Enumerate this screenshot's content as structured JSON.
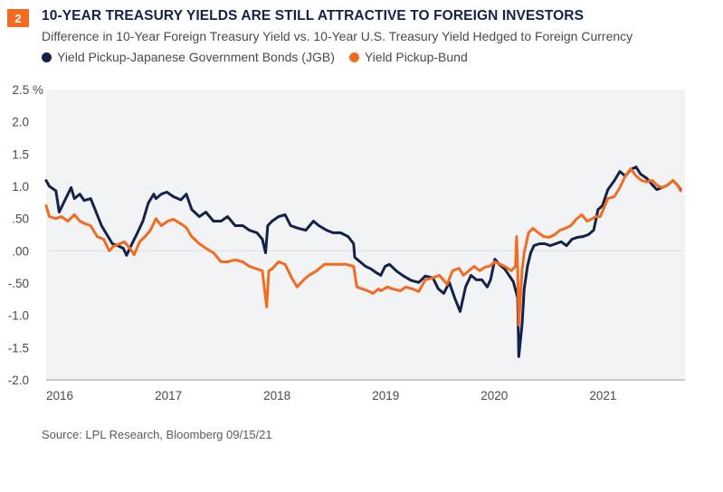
{
  "header": {
    "badge": "2",
    "title": "10-YEAR TREASURY YIELDS ARE STILL ATTRACTIVE TO FOREIGN INVESTORS",
    "subtitle": "Difference in 10-Year Foreign Treasury Yield vs. 10-Year U.S. Treasury Yield Hedged to Foreign Currency"
  },
  "colors": {
    "badge": "#f26b21",
    "title": "#14214a",
    "jgb": "#14214a",
    "bund": "#f26b21",
    "plot_bg": "#f2f3f5",
    "zero_line": "#e3e4e7",
    "axis": "#b8b8b8"
  },
  "source": "Source: LPL Research, Bloomberg   09/15/21",
  "chart_data": {
    "type": "line",
    "title": "10-YEAR TREASURY YIELDS ARE STILL ATTRACTIVE TO FOREIGN INVESTORS",
    "subtitle": "Difference in 10-Year Foreign Treasury Yield vs. 10-Year U.S. Treasury Yield Hedged to Foreign Currency",
    "xlabel": "",
    "ylabel": "%",
    "xlim": [
      2016.0,
      2021.88
    ],
    "ylim": [
      -2.0,
      2.5
    ],
    "y_ticks": [
      2.5,
      2.0,
      1.5,
      1.0,
      0.5,
      0.0,
      -0.5,
      -1.0,
      -1.5,
      -2.0
    ],
    "y_tick_labels": [
      "2.5 %",
      "2.0",
      "1.5",
      "1.0",
      ".50",
      ".00",
      "-.50",
      "-1.0",
      "-1.5",
      "-2.0"
    ],
    "x_ticks": [
      2016,
      2017,
      2018,
      2019,
      2020,
      2021
    ],
    "x_tick_labels": [
      "2016",
      "2017",
      "2018",
      "2019",
      "2020",
      "2021"
    ],
    "grid": "zero-line only",
    "legend_position": "top-left",
    "series": [
      {
        "name": "Yield Pickup-Japanese Government Bonds (JGB)",
        "color": "#14214a",
        "points": [
          [
            2016.0,
            1.09
          ],
          [
            2016.03,
            1.0
          ],
          [
            2016.09,
            0.93
          ],
          [
            2016.12,
            0.6
          ],
          [
            2016.16,
            0.74
          ],
          [
            2016.23,
            0.98
          ],
          [
            2016.26,
            0.81
          ],
          [
            2016.31,
            0.88
          ],
          [
            2016.35,
            0.78
          ],
          [
            2016.41,
            0.81
          ],
          [
            2016.46,
            0.6
          ],
          [
            2016.51,
            0.39
          ],
          [
            2016.56,
            0.25
          ],
          [
            2016.61,
            0.11
          ],
          [
            2016.66,
            0.08
          ],
          [
            2016.71,
            0.04
          ],
          [
            2016.74,
            -0.07
          ],
          [
            2016.79,
            0.11
          ],
          [
            2016.84,
            0.28
          ],
          [
            2016.89,
            0.46
          ],
          [
            2016.94,
            0.74
          ],
          [
            2016.99,
            0.88
          ],
          [
            2017.01,
            0.81
          ],
          [
            2017.06,
            0.88
          ],
          [
            2017.11,
            0.91
          ],
          [
            2017.17,
            0.84
          ],
          [
            2017.24,
            0.79
          ],
          [
            2017.29,
            0.88
          ],
          [
            2017.34,
            0.64
          ],
          [
            2017.41,
            0.53
          ],
          [
            2017.47,
            0.6
          ],
          [
            2017.54,
            0.46
          ],
          [
            2017.61,
            0.46
          ],
          [
            2017.67,
            0.53
          ],
          [
            2017.74,
            0.39
          ],
          [
            2017.81,
            0.39
          ],
          [
            2017.87,
            0.32
          ],
          [
            2017.94,
            0.28
          ],
          [
            2017.99,
            0.18
          ],
          [
            2018.02,
            -0.03
          ],
          [
            2018.04,
            0.39
          ],
          [
            2018.08,
            0.46
          ],
          [
            2018.14,
            0.53
          ],
          [
            2018.2,
            0.56
          ],
          [
            2018.25,
            0.39
          ],
          [
            2018.32,
            0.35
          ],
          [
            2018.39,
            0.32
          ],
          [
            2018.46,
            0.46
          ],
          [
            2018.51,
            0.39
          ],
          [
            2018.58,
            0.32
          ],
          [
            2018.64,
            0.28
          ],
          [
            2018.71,
            0.28
          ],
          [
            2018.78,
            0.22
          ],
          [
            2018.83,
            0.11
          ],
          [
            2018.84,
            -0.1
          ],
          [
            2018.89,
            -0.17
          ],
          [
            2018.94,
            -0.24
          ],
          [
            2018.99,
            -0.28
          ],
          [
            2019.04,
            -0.34
          ],
          [
            2019.08,
            -0.38
          ],
          [
            2019.12,
            -0.24
          ],
          [
            2019.16,
            -0.21
          ],
          [
            2019.23,
            -0.32
          ],
          [
            2019.29,
            -0.39
          ],
          [
            2019.36,
            -0.46
          ],
          [
            2019.43,
            -0.49
          ],
          [
            2019.49,
            -0.39
          ],
          [
            2019.56,
            -0.42
          ],
          [
            2019.61,
            -0.59
          ],
          [
            2019.66,
            -0.66
          ],
          [
            2019.71,
            -0.49
          ],
          [
            2019.76,
            -0.73
          ],
          [
            2019.81,
            -0.94
          ],
          [
            2019.86,
            -0.56
          ],
          [
            2019.91,
            -0.38
          ],
          [
            2019.96,
            -0.45
          ],
          [
            2020.01,
            -0.45
          ],
          [
            2020.06,
            -0.56
          ],
          [
            2020.09,
            -0.45
          ],
          [
            2020.13,
            -0.13
          ],
          [
            2020.17,
            -0.21
          ],
          [
            2020.22,
            -0.28
          ],
          [
            2020.26,
            -0.38
          ],
          [
            2020.3,
            -0.48
          ],
          [
            2020.34,
            -0.73
          ],
          [
            2020.35,
            -1.64
          ],
          [
            2020.38,
            -1.15
          ],
          [
            2020.4,
            -0.59
          ],
          [
            2020.43,
            -0.24
          ],
          [
            2020.46,
            -0.03
          ],
          [
            2020.49,
            0.08
          ],
          [
            2020.54,
            0.11
          ],
          [
            2020.59,
            0.11
          ],
          [
            2020.64,
            0.08
          ],
          [
            2020.69,
            0.11
          ],
          [
            2020.74,
            0.14
          ],
          [
            2020.79,
            0.08
          ],
          [
            2020.84,
            0.18
          ],
          [
            2020.89,
            0.21
          ],
          [
            2020.94,
            0.22
          ],
          [
            2020.99,
            0.25
          ],
          [
            2021.04,
            0.32
          ],
          [
            2021.08,
            0.64
          ],
          [
            2021.12,
            0.7
          ],
          [
            2021.17,
            0.95
          ],
          [
            2021.23,
            1.09
          ],
          [
            2021.28,
            1.23
          ],
          [
            2021.33,
            1.16
          ],
          [
            2021.38,
            1.26
          ],
          [
            2021.43,
            1.3
          ],
          [
            2021.47,
            1.19
          ],
          [
            2021.53,
            1.12
          ],
          [
            2021.58,
            1.02
          ],
          [
            2021.62,
            0.95
          ],
          [
            2021.67,
            0.98
          ],
          [
            2021.72,
            1.02
          ],
          [
            2021.77,
            1.09
          ],
          [
            2021.81,
            1.02
          ],
          [
            2021.84,
            0.95
          ]
        ]
      },
      {
        "name": "Yield Pickup-Bund",
        "color": "#f26b21",
        "points": [
          [
            2016.0,
            0.7
          ],
          [
            2016.03,
            0.53
          ],
          [
            2016.09,
            0.5
          ],
          [
            2016.14,
            0.53
          ],
          [
            2016.2,
            0.46
          ],
          [
            2016.26,
            0.56
          ],
          [
            2016.31,
            0.46
          ],
          [
            2016.36,
            0.42
          ],
          [
            2016.41,
            0.39
          ],
          [
            2016.47,
            0.22
          ],
          [
            2016.53,
            0.18
          ],
          [
            2016.58,
            0.0
          ],
          [
            2016.62,
            0.07
          ],
          [
            2016.68,
            0.11
          ],
          [
            2016.72,
            0.14
          ],
          [
            2016.77,
            0.04
          ],
          [
            2016.81,
            -0.06
          ],
          [
            2016.86,
            0.14
          ],
          [
            2016.91,
            0.22
          ],
          [
            2016.96,
            0.32
          ],
          [
            2017.01,
            0.5
          ],
          [
            2017.06,
            0.39
          ],
          [
            2017.12,
            0.46
          ],
          [
            2017.17,
            0.49
          ],
          [
            2017.24,
            0.42
          ],
          [
            2017.29,
            0.36
          ],
          [
            2017.34,
            0.22
          ],
          [
            2017.41,
            0.11
          ],
          [
            2017.47,
            0.04
          ],
          [
            2017.54,
            -0.03
          ],
          [
            2017.61,
            -0.17
          ],
          [
            2017.67,
            -0.17
          ],
          [
            2017.74,
            -0.14
          ],
          [
            2017.81,
            -0.17
          ],
          [
            2017.87,
            -0.24
          ],
          [
            2017.94,
            -0.28
          ],
          [
            2017.99,
            -0.31
          ],
          [
            2018.03,
            -0.87
          ],
          [
            2018.05,
            -0.31
          ],
          [
            2018.08,
            -0.28
          ],
          [
            2018.14,
            -0.17
          ],
          [
            2018.2,
            -0.21
          ],
          [
            2018.26,
            -0.42
          ],
          [
            2018.31,
            -0.56
          ],
          [
            2018.37,
            -0.45
          ],
          [
            2018.42,
            -0.38
          ],
          [
            2018.49,
            -0.31
          ],
          [
            2018.56,
            -0.21
          ],
          [
            2018.62,
            -0.21
          ],
          [
            2018.69,
            -0.21
          ],
          [
            2018.76,
            -0.21
          ],
          [
            2018.83,
            -0.24
          ],
          [
            2018.86,
            -0.56
          ],
          [
            2018.91,
            -0.59
          ],
          [
            2018.96,
            -0.62
          ],
          [
            2019.01,
            -0.66
          ],
          [
            2019.06,
            -0.59
          ],
          [
            2019.08,
            -0.62
          ],
          [
            2019.14,
            -0.56
          ],
          [
            2019.19,
            -0.59
          ],
          [
            2019.26,
            -0.62
          ],
          [
            2019.31,
            -0.56
          ],
          [
            2019.37,
            -0.59
          ],
          [
            2019.43,
            -0.63
          ],
          [
            2019.49,
            -0.45
          ],
          [
            2019.56,
            -0.42
          ],
          [
            2019.62,
            -0.38
          ],
          [
            2019.69,
            -0.52
          ],
          [
            2019.74,
            -0.31
          ],
          [
            2019.8,
            -0.27
          ],
          [
            2019.84,
            -0.38
          ],
          [
            2019.89,
            -0.31
          ],
          [
            2019.94,
            -0.24
          ],
          [
            2019.99,
            -0.31
          ],
          [
            2020.04,
            -0.25
          ],
          [
            2020.08,
            -0.24
          ],
          [
            2020.13,
            -0.17
          ],
          [
            2020.17,
            -0.2
          ],
          [
            2020.22,
            -0.24
          ],
          [
            2020.28,
            -0.31
          ],
          [
            2020.32,
            -0.24
          ],
          [
            2020.33,
            0.22
          ],
          [
            2020.34,
            -0.31
          ],
          [
            2020.35,
            -1.15
          ],
          [
            2020.38,
            -0.31
          ],
          [
            2020.4,
            -0.03
          ],
          [
            2020.44,
            0.28
          ],
          [
            2020.48,
            0.35
          ],
          [
            2020.53,
            0.28
          ],
          [
            2020.58,
            0.22
          ],
          [
            2020.63,
            0.21
          ],
          [
            2020.68,
            0.25
          ],
          [
            2020.73,
            0.32
          ],
          [
            2020.78,
            0.35
          ],
          [
            2020.83,
            0.39
          ],
          [
            2020.88,
            0.49
          ],
          [
            2020.93,
            0.56
          ],
          [
            2020.98,
            0.46
          ],
          [
            2021.03,
            0.5
          ],
          [
            2021.06,
            0.53
          ],
          [
            2021.1,
            0.53
          ],
          [
            2021.17,
            0.81
          ],
          [
            2021.23,
            0.84
          ],
          [
            2021.28,
            0.98
          ],
          [
            2021.33,
            1.16
          ],
          [
            2021.38,
            1.27
          ],
          [
            2021.43,
            1.16
          ],
          [
            2021.48,
            1.09
          ],
          [
            2021.53,
            1.07
          ],
          [
            2021.58,
            1.09
          ],
          [
            2021.62,
            1.02
          ],
          [
            2021.67,
            0.98
          ],
          [
            2021.72,
            1.02
          ],
          [
            2021.77,
            1.09
          ],
          [
            2021.81,
            1.02
          ],
          [
            2021.84,
            0.93
          ]
        ]
      }
    ]
  }
}
